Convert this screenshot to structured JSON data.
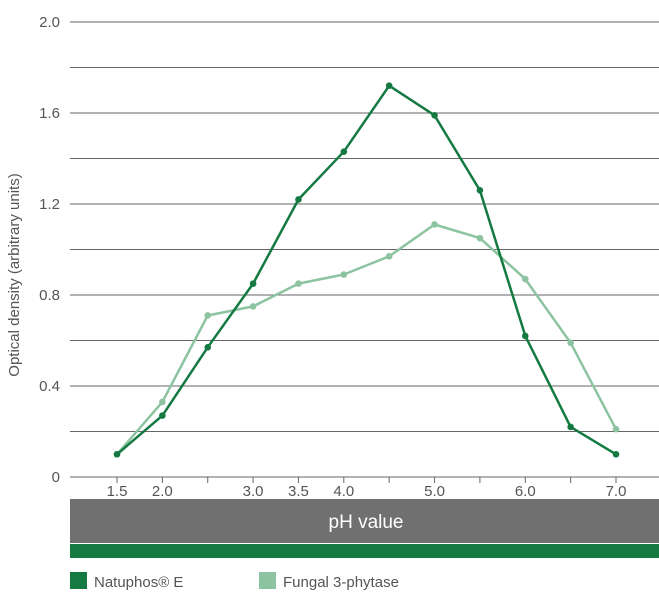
{
  "chart_data": {
    "type": "line",
    "title": "",
    "xlabel": "pH value",
    "ylabel": "Optical density (arbitrary units)",
    "xlim": [
      1.5,
      7.0
    ],
    "ylim": [
      0,
      2.0
    ],
    "x_ticks": [
      1.5,
      2.0,
      2.5,
      3.0,
      3.5,
      4.0,
      4.5,
      5.0,
      5.5,
      6.0,
      6.5,
      7.0
    ],
    "x_tick_labels": [
      "1.5",
      "2.0",
      "",
      "3.0",
      "3.5",
      "4.0",
      "",
      "5.0",
      "",
      "6.0",
      "",
      "7.0"
    ],
    "y_ticks": [
      0,
      0.4,
      0.8,
      1.2,
      1.6,
      2.0
    ],
    "y_tick_labels": [
      "0",
      "0.4",
      "0.8",
      "1.2",
      "1.6",
      "2.0"
    ],
    "grid": true,
    "legend_position": "bottom-left",
    "series": [
      {
        "name": "Natuphos® E",
        "color": "#147a41",
        "x": [
          1.5,
          2.0,
          2.5,
          3.0,
          3.5,
          4.0,
          4.5,
          5.0,
          5.5,
          6.0,
          6.5,
          7.0
        ],
        "values": [
          0.1,
          0.27,
          0.57,
          0.85,
          1.22,
          1.43,
          1.72,
          1.59,
          1.26,
          0.62,
          0.22,
          0.1
        ]
      },
      {
        "name": "Fungal 3-phytase",
        "color": "#8cc3a0",
        "x": [
          1.5,
          2.0,
          2.5,
          3.0,
          3.5,
          4.0,
          4.5,
          5.0,
          5.5,
          6.0,
          6.5,
          7.0
        ],
        "values": [
          0.1,
          0.33,
          0.71,
          0.75,
          0.85,
          0.89,
          0.97,
          1.11,
          1.05,
          0.87,
          0.59,
          0.21
        ]
      }
    ],
    "colors": {
      "gridline": "#666666",
      "band": "#707070",
      "accent": "#147a41"
    }
  }
}
